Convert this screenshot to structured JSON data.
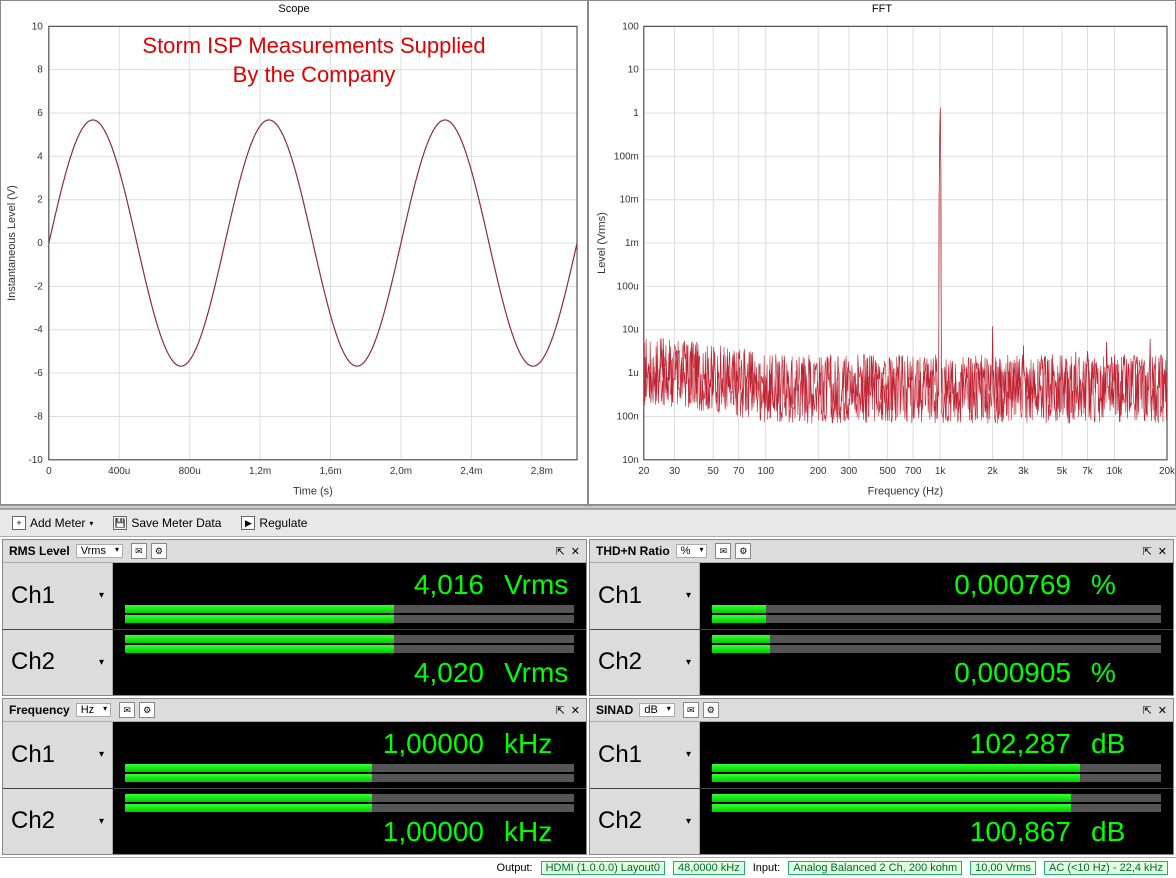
{
  "charts": {
    "scope": {
      "title": "Scope",
      "watermark_line1": "Storm ISP Measurements Supplied",
      "watermark_line2": "By the Company",
      "xlabel": "Time (s)",
      "ylabel": "Instantaneous Level (V)",
      "ylim": [
        -10,
        10
      ],
      "ytick_step": 2,
      "xticks": [
        "0",
        "400u",
        "800u",
        "1,2m",
        "1,6m",
        "2,0m",
        "2,4m",
        "2,8m"
      ],
      "xtick_vals": [
        0,
        0.0004,
        0.0008,
        0.0012,
        0.0016,
        0.002,
        0.0024,
        0.0028
      ],
      "xmax": 0.003,
      "line_color": "#8b2a4a",
      "sine": {
        "amplitude": 5.68,
        "frequency_hz": 1000
      },
      "bg": "#ffffff",
      "grid_color": "#dddddd"
    },
    "fft": {
      "title": "FFT",
      "xlabel": "Frequency (Hz)",
      "ylabel": "Level (Vrms)",
      "xlim": [
        20,
        20000
      ],
      "xticks": [
        20,
        30,
        50,
        70,
        100,
        200,
        300,
        500,
        700,
        "1k",
        "2k",
        "3k",
        "5k",
        "7k",
        "10k",
        "20k"
      ],
      "xtick_vals": [
        20,
        30,
        50,
        70,
        100,
        200,
        300,
        500,
        700,
        1000,
        2000,
        3000,
        5000,
        7000,
        10000,
        20000
      ],
      "yticks": [
        "10n",
        "100n",
        "1u",
        "10u",
        "100u",
        "1m",
        "10m",
        "100m",
        "1",
        "10",
        "100"
      ],
      "ytick_vals": [
        1e-08,
        1e-07,
        1e-06,
        1e-05,
        0.0001,
        0.001,
        0.01,
        0.1,
        1,
        10,
        100
      ],
      "ylim_log": [
        1e-08,
        100
      ],
      "colors": {
        "ch1": "#c02030",
        "ch2": "#2040c0"
      },
      "noise_floor_vrms": 3e-07,
      "peaks": [
        {
          "f": 1000,
          "v": 4.0
        },
        {
          "f": 2000,
          "v": 1.2e-05
        },
        {
          "f": 3000,
          "v": 8e-06
        },
        {
          "f": 4000,
          "v": 6e-06
        },
        {
          "f": 5000,
          "v": 1e-05
        },
        {
          "f": 6000,
          "v": 5e-06
        },
        {
          "f": 7000,
          "v": 7e-06
        },
        {
          "f": 8000,
          "v": 5e-06
        },
        {
          "f": 9000,
          "v": 6e-06
        },
        {
          "f": 10000,
          "v": 8e-06
        },
        {
          "f": 12000,
          "v": 6e-06
        },
        {
          "f": 14000,
          "v": 7e-06
        },
        {
          "f": 16000,
          "v": 8e-06
        },
        {
          "f": 18000,
          "v": 6e-06
        }
      ],
      "bg": "#ffffff"
    }
  },
  "toolbar": {
    "add_meter": "Add Meter",
    "save_meter": "Save Meter Data",
    "regulate": "Regulate"
  },
  "meters": [
    {
      "title": "RMS Level",
      "unit_select": "Vrms",
      "ch1": {
        "label": "Ch1",
        "value": "4,016",
        "unit": "Vrms",
        "bars": [
          0.6,
          0.6
        ]
      },
      "ch2": {
        "label": "Ch2",
        "value": "4,020",
        "unit": "Vrms",
        "bars": [
          0.6,
          0.6
        ]
      }
    },
    {
      "title": "THD+N Ratio",
      "unit_select": "%",
      "ch1": {
        "label": "Ch1",
        "value": "0,000769",
        "unit": "%",
        "bars": [
          0.12,
          0.12
        ]
      },
      "ch2": {
        "label": "Ch2",
        "value": "0,000905",
        "unit": "%",
        "bars": [
          0.13,
          0.13
        ]
      }
    },
    {
      "title": "Frequency",
      "unit_select": "Hz",
      "ch1": {
        "label": "Ch1",
        "value": "1,00000",
        "unit": "kHz",
        "bars": [
          0.55,
          0.55
        ]
      },
      "ch2": {
        "label": "Ch2",
        "value": "1,00000",
        "unit": "kHz",
        "bars": [
          0.55,
          0.55
        ]
      }
    },
    {
      "title": "SINAD",
      "unit_select": "dB",
      "ch1": {
        "label": "Ch1",
        "value": "102,287",
        "unit": "dB",
        "bars": [
          0.82,
          0.82
        ]
      },
      "ch2": {
        "label": "Ch2",
        "value": "100,867",
        "unit": "dB",
        "bars": [
          0.8,
          0.8
        ]
      }
    }
  ],
  "status": {
    "output_label": "Output:",
    "output_box1": "HDMI (1.0.0.0)  Layout0",
    "output_box2": "48,0000 kHz",
    "input_label": "Input:",
    "input_box1": "Analog Balanced 2 Ch, 200 kohm",
    "input_box2": "10,00 Vrms",
    "input_box3": "AC (<10 Hz) - 22,4 kHz"
  },
  "colors": {
    "meter_bg": "#000000",
    "meter_text": "#00ff00",
    "bar_bg": "#555555",
    "bar_fill": "#22dd22"
  }
}
